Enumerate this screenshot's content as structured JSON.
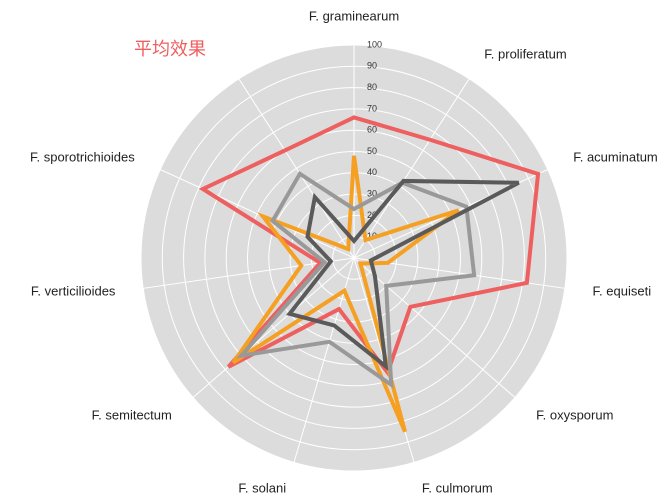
{
  "chart_data": {
    "type": "radar",
    "title": "平均效果",
    "categories": [
      "F. graminearum",
      "F. proliferatum",
      "F. acuminatum",
      "F. equiseti",
      "F. oxysporum",
      "F. culmorum",
      "F. solani",
      "F. semitectum",
      "F. verticilioides",
      "F. sporotrichioides",
      null
    ],
    "series": [
      {
        "color": "#ee5f5f",
        "values": [
          66,
          66,
          95,
          82,
          35,
          56,
          25,
          78,
          16,
          78,
          60
        ]
      },
      {
        "color": "#f5a023",
        "values": [
          48,
          10,
          54,
          16,
          4,
          85,
          16,
          75,
          25,
          47,
          5
        ]
      },
      {
        "color": "#999999",
        "values": [
          23,
          42,
          58,
          57,
          20,
          62,
          41,
          70,
          14,
          42,
          47
        ]
      },
      {
        "color": "#5a5a5a",
        "values": [
          8,
          43,
          85,
          8,
          13,
          53,
          33,
          40,
          11,
          24,
          34
        ]
      }
    ],
    "ylim": [
      0,
      100
    ],
    "yticks": [
      10,
      20,
      30,
      40,
      50,
      60,
      70,
      80,
      90,
      100
    ],
    "grid": true
  }
}
